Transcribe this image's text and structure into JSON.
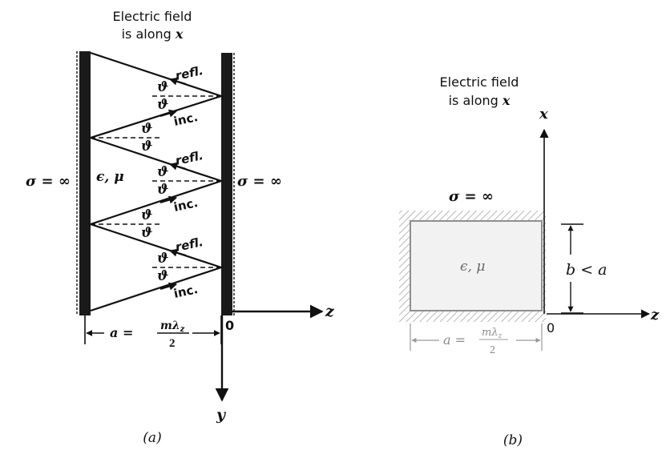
{
  "figure_a": {
    "header_line1": "Electric field",
    "header_line2_prefix": "is along ",
    "header_line2_var": "x",
    "sigma_left": "σ = ∞",
    "sigma_right": "σ = ∞",
    "medium": "ϵ, μ",
    "refl_label": "refl.",
    "inc_label": "inc.",
    "theta": "ϑ",
    "origin": "0",
    "axis_z": "z",
    "axis_y": "y",
    "dim_a": "a =",
    "dim_num": "mλ",
    "dim_sub": "z",
    "dim_den": "2",
    "caption": "(a)"
  },
  "figure_b": {
    "header_line1": "Electric field",
    "header_line2_prefix": "is along ",
    "header_line2_var": "x",
    "sigma": "σ = ∞",
    "medium": "ϵ, μ",
    "dim_b": "b < a",
    "origin": "0",
    "axis_x": "x",
    "axis_z": "z",
    "dim_a": "a =",
    "dim_num": "mλ",
    "dim_sub": "z",
    "dim_den": "2",
    "caption": "(b)"
  },
  "colors": {
    "ink": "#111111",
    "wall": "#1a1a1a",
    "box_fill": "#f2f2f2",
    "box_border": "#9a9a9a",
    "faded_text": "#8a8a8a"
  }
}
